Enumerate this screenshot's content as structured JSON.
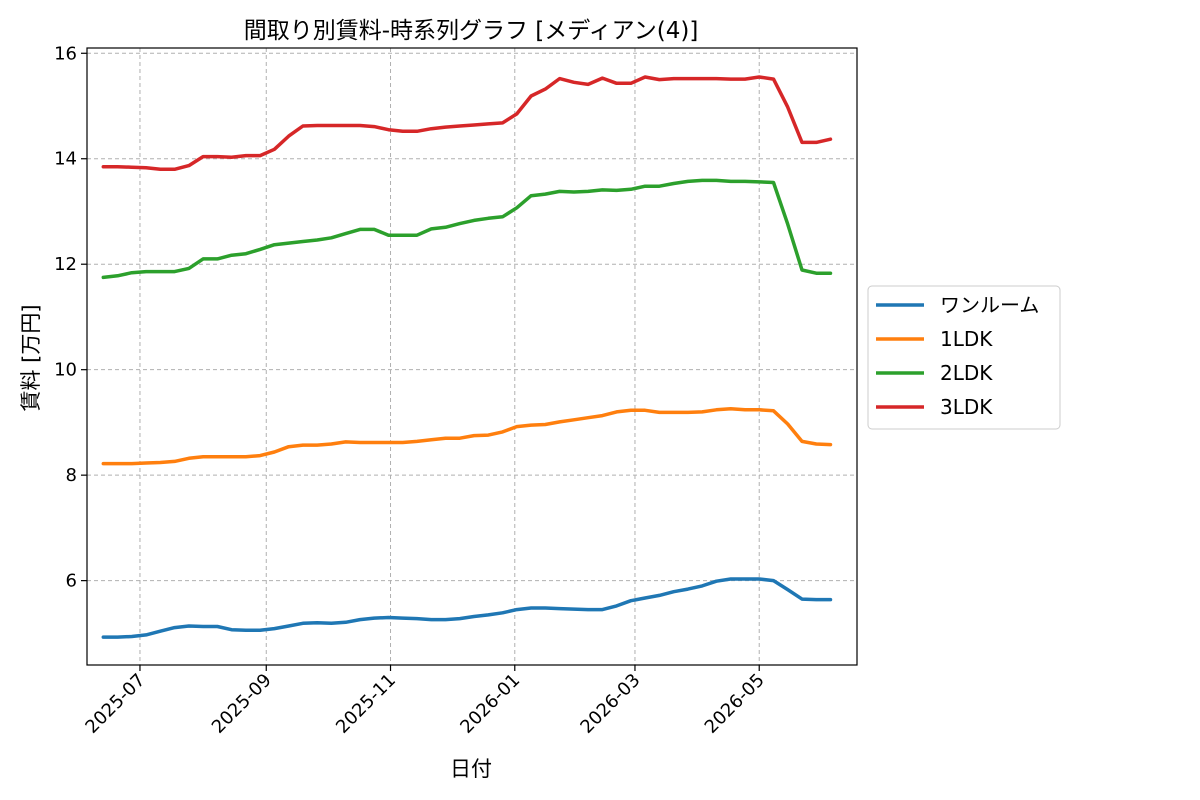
{
  "chart_data": {
    "type": "line",
    "title": "間取り別賃料-時系列グラフ [メディアン(4)]",
    "xlabel": "日付",
    "ylabel": "賃料 [万円]",
    "xlim": [
      "2025-06-05",
      "2026-06-18"
    ],
    "ylim": [
      4.4,
      16.1
    ],
    "x_ticks": [
      "2025-07",
      "2025-09",
      "2025-11",
      "2026-01",
      "2026-03",
      "2026-05"
    ],
    "y_ticks": [
      6,
      8,
      10,
      12,
      14,
      16
    ],
    "grid": true,
    "legend_position": "center-right-outside",
    "x": [
      "2025-06-13",
      "2025-06-20",
      "2025-06-27",
      "2025-07-04",
      "2025-07-11",
      "2025-07-18",
      "2025-07-25",
      "2025-08-01",
      "2025-08-08",
      "2025-08-15",
      "2025-08-22",
      "2025-08-29",
      "2025-09-05",
      "2025-09-12",
      "2025-09-19",
      "2025-09-26",
      "2025-10-03",
      "2025-10-10",
      "2025-10-17",
      "2025-10-24",
      "2025-10-31",
      "2025-11-07",
      "2025-11-14",
      "2025-11-21",
      "2025-11-28",
      "2025-12-05",
      "2025-12-12",
      "2025-12-19",
      "2025-12-26",
      "2026-01-02",
      "2026-01-09",
      "2026-01-16",
      "2026-01-23",
      "2026-01-30",
      "2026-02-06",
      "2026-02-13",
      "2026-02-20",
      "2026-02-27",
      "2026-03-06",
      "2026-03-13",
      "2026-03-20",
      "2026-03-27",
      "2026-04-03",
      "2026-04-10",
      "2026-04-17",
      "2026-04-24",
      "2026-05-01",
      "2026-05-08",
      "2026-05-15",
      "2026-05-22",
      "2026-05-29",
      "2026-06-05"
    ],
    "series": [
      {
        "name": "ワンルーム",
        "color": "#1f77b4",
        "values": [
          4.93,
          4.93,
          4.94,
          4.97,
          5.04,
          5.11,
          5.14,
          5.13,
          5.13,
          5.07,
          5.06,
          5.06,
          5.09,
          5.14,
          5.19,
          5.2,
          5.19,
          5.21,
          5.26,
          5.29,
          5.3,
          5.29,
          5.28,
          5.26,
          5.26,
          5.28,
          5.32,
          5.35,
          5.39,
          5.45,
          5.48,
          5.48,
          5.47,
          5.46,
          5.45,
          5.45,
          5.52,
          5.62,
          5.67,
          5.72,
          5.79,
          5.84,
          5.9,
          5.99,
          6.03,
          6.03,
          6.03,
          6.0,
          5.83,
          5.65,
          5.64,
          5.64
        ]
      },
      {
        "name": "1LDK",
        "color": "#ff7f0e",
        "values": [
          8.22,
          8.22,
          8.22,
          8.23,
          8.24,
          8.26,
          8.32,
          8.35,
          8.35,
          8.35,
          8.35,
          8.37,
          8.44,
          8.54,
          8.57,
          8.57,
          8.59,
          8.63,
          8.62,
          8.62,
          8.62,
          8.62,
          8.64,
          8.67,
          8.7,
          8.7,
          8.75,
          8.76,
          8.82,
          8.92,
          8.95,
          8.96,
          9.01,
          9.05,
          9.09,
          9.13,
          9.2,
          9.23,
          9.23,
          9.19,
          9.19,
          9.19,
          9.2,
          9.24,
          9.26,
          9.24,
          9.24,
          9.22,
          8.97,
          8.64,
          8.59,
          8.58
        ]
      },
      {
        "name": "2LDK",
        "color": "#2ca02c",
        "values": [
          11.75,
          11.78,
          11.84,
          11.86,
          11.86,
          11.86,
          11.92,
          12.1,
          12.1,
          12.17,
          12.2,
          12.28,
          12.37,
          12.4,
          12.43,
          12.46,
          12.5,
          12.58,
          12.66,
          12.66,
          12.55,
          12.55,
          12.55,
          12.67,
          12.7,
          12.77,
          12.83,
          12.87,
          12.9,
          13.07,
          13.3,
          13.33,
          13.38,
          13.37,
          13.38,
          13.41,
          13.4,
          13.42,
          13.48,
          13.48,
          13.53,
          13.57,
          13.59,
          13.59,
          13.57,
          13.57,
          13.56,
          13.55,
          12.76,
          11.89,
          11.83,
          11.83
        ]
      },
      {
        "name": "3LDK",
        "color": "#d62728",
        "values": [
          13.85,
          13.85,
          13.84,
          13.83,
          13.8,
          13.8,
          13.87,
          14.04,
          14.04,
          14.03,
          14.06,
          14.06,
          14.18,
          14.43,
          14.62,
          14.63,
          14.63,
          14.63,
          14.63,
          14.61,
          14.55,
          14.52,
          14.52,
          14.57,
          14.6,
          14.62,
          14.64,
          14.66,
          14.68,
          14.85,
          15.19,
          15.32,
          15.52,
          15.45,
          15.41,
          15.53,
          15.43,
          15.43,
          15.55,
          15.5,
          15.52,
          15.52,
          15.52,
          15.52,
          15.51,
          15.51,
          15.55,
          15.51,
          14.98,
          14.31,
          14.31,
          14.37
        ]
      }
    ]
  }
}
